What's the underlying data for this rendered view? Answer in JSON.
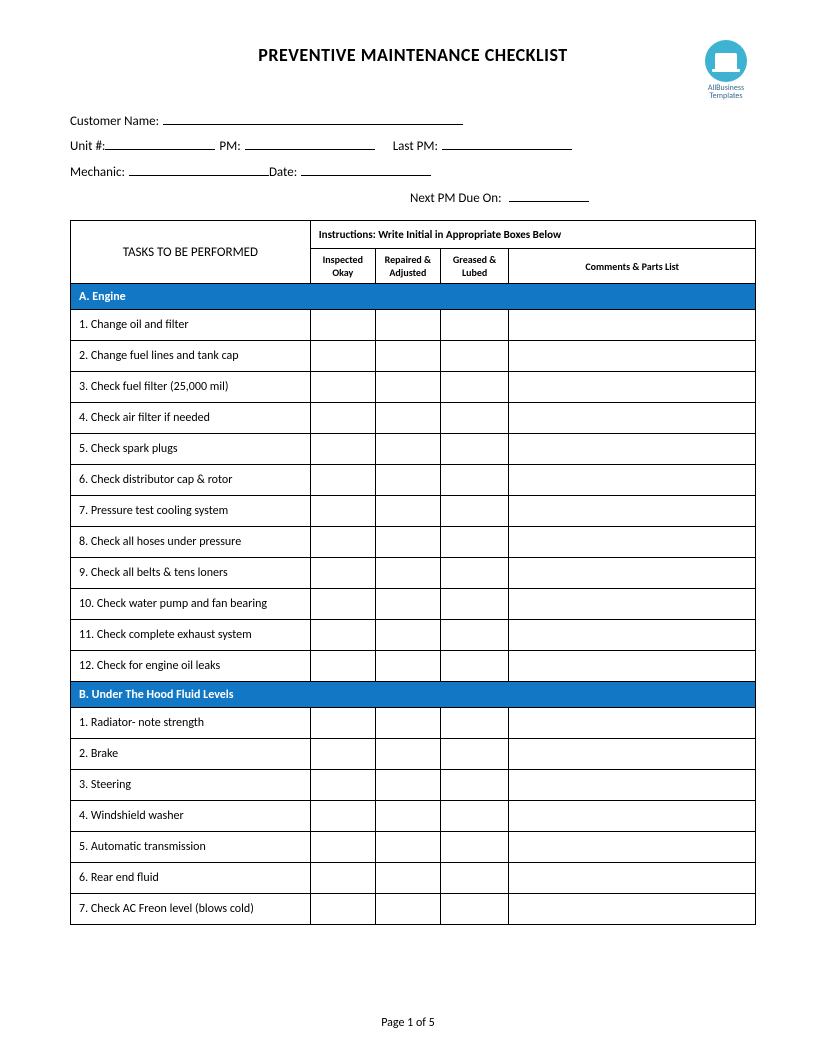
{
  "title": "PREVENTIVE MAINTENANCE CHECKLIST",
  "logo": {
    "line1": "AllBusiness",
    "line2": "Templates"
  },
  "fields": {
    "customer_label": "Customer Name:",
    "unit_label": "Unit #:",
    "pm_label": "PM:",
    "last_pm_label": "Last PM:",
    "mechanic_label": "Mechanic:",
    "date_label": "Date:",
    "next_pm_label": "Next PM Due On:"
  },
  "table": {
    "instructions": "Instructions:  Write Initial in Appropriate Boxes Below",
    "task_header": "TASKS TO BE PERFORMED",
    "col_inspected": "Inspected Okay",
    "col_repaired": "Repaired & Adjusted",
    "col_greased": "Greased & Lubed",
    "col_comments": "Comments & Parts List",
    "col_widths_pct": [
      35,
      9.5,
      9.5,
      10,
      36
    ],
    "section_color": "#1277c4",
    "section_text_color": "#ffffff",
    "sections": [
      {
        "heading": "A. Engine",
        "tasks": [
          "1. Change oil and filter",
          "2. Change fuel lines and tank cap",
          "3. Check fuel filter (25,000 mil)",
          "4. Check air filter if needed",
          "5. Check spark plugs",
          "6. Check distributor cap & rotor",
          "7. Pressure test cooling system",
          "8. Check all hoses under pressure",
          "9. Check all belts & tens loners",
          "10. Check water pump and fan bearing",
          "11. Check complete exhaust system",
          "12. Check for engine oil leaks"
        ]
      },
      {
        "heading": "B. Under The Hood Fluid Levels",
        "tasks": [
          "1. Radiator- note strength",
          "2. Brake",
          "3. Steering",
          "4. Windshield washer",
          "5. Automatic transmission",
          "6. Rear end fluid",
          "7. Check AC Freon level (blows cold)"
        ]
      }
    ]
  },
  "footer": "Page 1 of 5"
}
